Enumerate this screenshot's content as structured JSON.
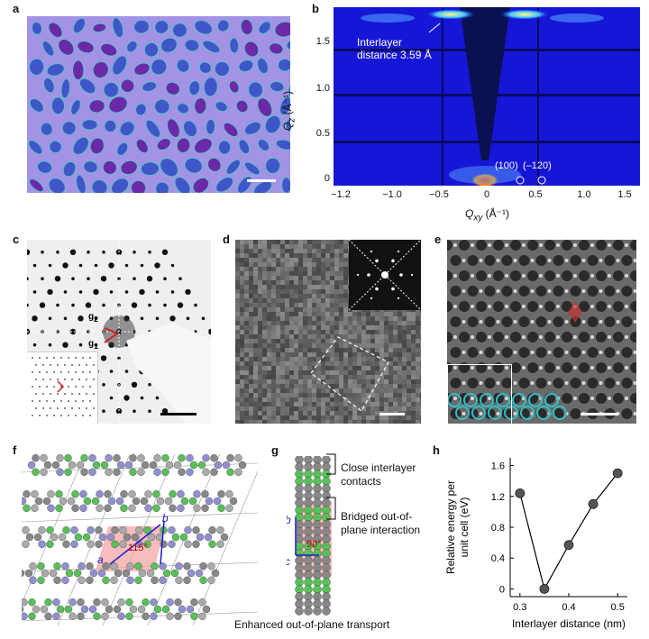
{
  "panels": {
    "a": {
      "label": "a"
    },
    "b": {
      "label": "b",
      "annotation_line1": "Interlayer",
      "annotation_line2": "distance 3.59 Å",
      "peak_label_1": "(100)",
      "peak_label_2": "(–120)",
      "xlabel": "Q",
      "xlabel_sub": "xy",
      "xlabel_unit": " (Å⁻¹)",
      "ylabel": "Q",
      "ylabel_sub": "z",
      "ylabel_unit": " (Å⁻¹)",
      "xticks": [
        "−1.2",
        "−1.0",
        "−0.5",
        "0",
        "0.5",
        "1.0",
        "1.5"
      ],
      "yticks": [
        "0",
        "0.5",
        "1.0",
        "1.5"
      ]
    },
    "c": {
      "label": "c",
      "g2": "g",
      "g2_sub": "2",
      "g1": "g",
      "g1_sub": "1"
    },
    "d": {
      "label": "d"
    },
    "e": {
      "label": "e"
    },
    "f": {
      "label": "f",
      "axis_a": "a",
      "axis_b": "b",
      "angle": "115°"
    },
    "g": {
      "label": "g",
      "note1_line1": "Close interlayer",
      "note1_line2": "contacts",
      "note2_line1": "Bridged out-of-",
      "note2_line2": "plane interaction",
      "axis_b": "b",
      "axis_c": "c",
      "angle": "90°",
      "caption": "Enhanced out-of-plane transport"
    },
    "h": {
      "label": "h"
    }
  },
  "chart_data": {
    "type": "line",
    "x": [
      0.3,
      0.35,
      0.4,
      0.45,
      0.5
    ],
    "values": [
      1.24,
      0.0,
      0.57,
      1.1,
      1.5
    ],
    "xlabel": "Interlayer distance (nm)",
    "ylabel_line1": "Relative energy per",
    "ylabel_line2": "unit cell (eV)",
    "xlim": [
      0.28,
      0.52
    ],
    "ylim": [
      -0.1,
      1.7
    ],
    "xticks": [
      "0.3",
      "0.4",
      "0.5"
    ],
    "yticks": [
      "0",
      "0.4",
      "0.8",
      "1.2",
      "1.6"
    ],
    "xtick_values": [
      0.3,
      0.4,
      0.5
    ],
    "ytick_values": [
      0,
      0.4,
      0.8,
      1.2,
      1.6
    ]
  },
  "colors": {
    "gisaxs_bg": "#1414d8",
    "micrograph_bg": "#9a8fe0",
    "domain": "#3d54c6",
    "marker": "#555555",
    "bridge_red": "#e05050"
  }
}
